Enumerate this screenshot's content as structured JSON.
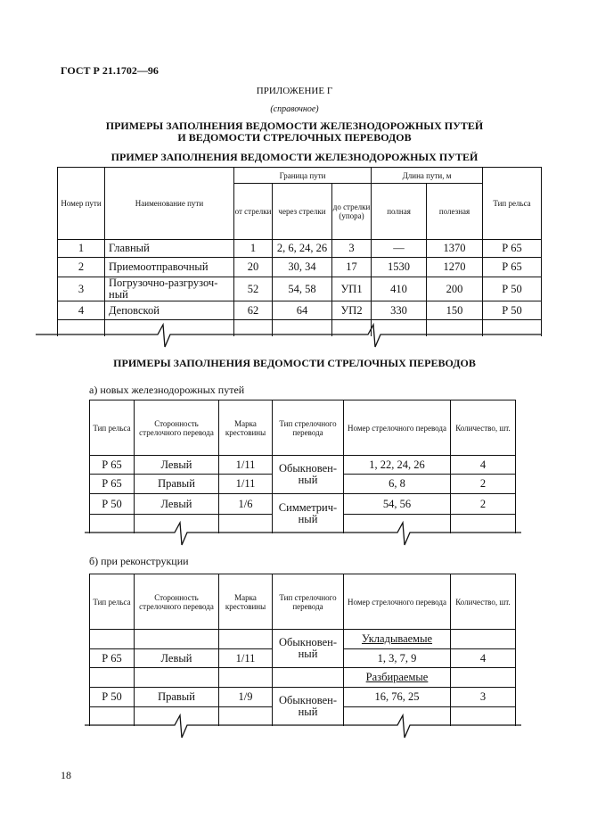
{
  "header": "ГОСТ Р 21.1702—96",
  "appendix": "ПРИЛОЖЕНИЕ Г",
  "appendix_note": "(справочное)",
  "title_line1": "ПРИМЕРЫ ЗАПОЛНЕНИЯ ВЕДОМОСТИ ЖЕЛЕЗНОДОРОЖНЫХ ПУТЕЙ",
  "title_line2": "И ВЕДОМОСТИ СТРЕЛОЧНЫХ ПЕРЕВОДОВ",
  "tracks": {
    "title": "ПРИМЕР ЗАПОЛНЕНИЯ ВЕДОМОСТИ ЖЕЛЕЗНОДОРОЖНЫХ ПУТЕЙ",
    "headers": {
      "num": "Номер пути",
      "name": "Наименование пути",
      "bound": "Граница пути",
      "from": "от стрелки",
      "via": "через стрелки",
      "to": "до стрелки (упора)",
      "length": "Длина пути, м",
      "full": "полная",
      "useful": "полезная",
      "rail": "Тип рельса"
    },
    "rows": [
      [
        "1",
        "Главный",
        "1",
        "2, 6, 24, 26",
        "3",
        "—",
        "1370",
        "Р 65"
      ],
      [
        "2",
        "Приемоотправочный",
        "20",
        "30, 34",
        "17",
        "1530",
        "1270",
        "Р 65"
      ],
      [
        "3",
        "Погрузочно-разгрузоч-ный",
        "52",
        "54, 58",
        "УП1",
        "410",
        "200",
        "Р 50"
      ],
      [
        "4",
        "Деповской",
        "62",
        "64",
        "УП2",
        "330",
        "150",
        "Р 50"
      ]
    ]
  },
  "switches_title": "ПРИМЕРЫ ЗАПОЛНЕНИЯ ВЕДОМОСТИ СТРЕЛОЧНЫХ ПЕРЕВОДОВ",
  "switch_headers": {
    "rail": "Тип рельса",
    "side": "Сторонность стрелочного перевода",
    "mark": "Марка крестовины",
    "type": "Тип стрелочного перевода",
    "num": "Номер стрелочного перевода",
    "qty": "Количество, шт."
  },
  "new_tracks": {
    "subtitle": "а) новых железнодорожных путей",
    "rows": [
      [
        "Р 65",
        "Левый",
        "1/11",
        "1, 22, 24, 26",
        "4"
      ],
      [
        "Р 65",
        "Правый",
        "1/11",
        "6, 8",
        "2"
      ],
      [
        "Р 50",
        "Левый",
        "1/6",
        "54, 56",
        "2"
      ]
    ],
    "type1": "Обыкновен-ный",
    "type2": "Симметрич-ный"
  },
  "reconstruction": {
    "subtitle": "б) при реконструкции",
    "laid": "Укладываемые",
    "removed": "Разбираемые",
    "row1": [
      "Р 65",
      "Левый",
      "1/11",
      "1, 3, 7, 9",
      "4"
    ],
    "row2": [
      "Р 50",
      "Правый",
      "1/9",
      "16, 76, 25",
      "3"
    ],
    "type1": "Обыкновен-ный",
    "type2": "Обыкновен-ный"
  },
  "page_number": "18"
}
